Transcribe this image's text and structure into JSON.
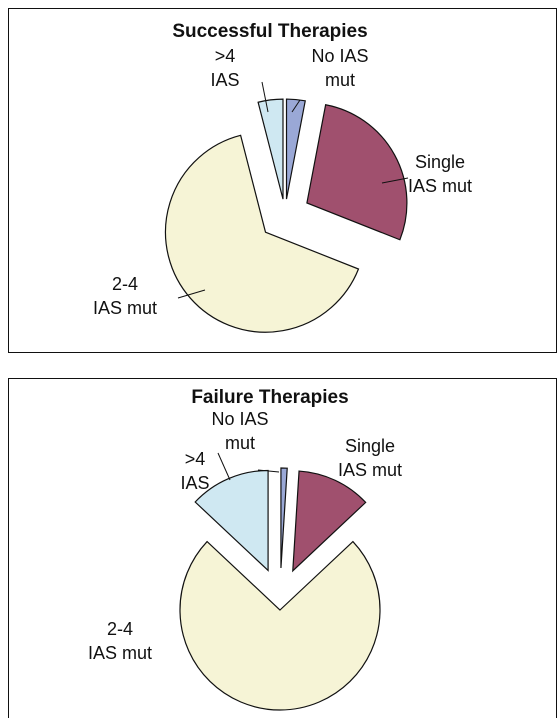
{
  "chart_data": [
    {
      "type": "pie",
      "title": "Successful Therapies",
      "categories": [
        "No IAS mut",
        "Single IAS mut",
        "2-4 IAS mut",
        ">4 IAS"
      ],
      "values": [
        3,
        28,
        65,
        4
      ],
      "colors": [
        "#9aa8d6",
        "#a0506e",
        "#f6f4d6",
        "#cfe8f2"
      ]
    },
    {
      "type": "pie",
      "title": "Failure Therapies",
      "categories": [
        "No IAS mut",
        "Single IAS mut",
        "2-4 IAS mut",
        ">4 IAS"
      ],
      "values": [
        1,
        12,
        74,
        13
      ],
      "colors": [
        "#9aa8d6",
        "#a0506e",
        "#f6f4d6",
        "#cfe8f2"
      ]
    }
  ]
}
